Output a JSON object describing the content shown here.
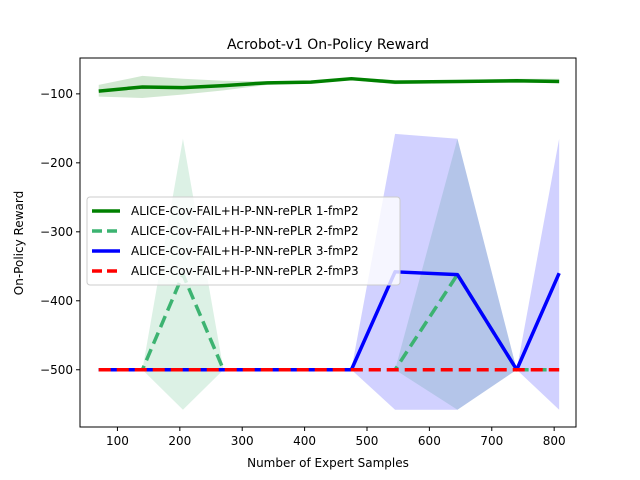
{
  "chart_data": {
    "type": "line",
    "title": "Acrobot-v1 On-Policy Reward",
    "xlabel": "Number of Expert Samples",
    "ylabel": "On-Policy Reward",
    "xlim": [
      40,
      835
    ],
    "ylim": [
      -583,
      -48
    ],
    "xticks": [
      100,
      200,
      300,
      400,
      500,
      600,
      700,
      800
    ],
    "yticks": [
      -100,
      -200,
      -300,
      -400,
      -500
    ],
    "xtick_labels": [
      "100",
      "200",
      "300",
      "400",
      "500",
      "600",
      "700",
      "800"
    ],
    "ytick_labels": [
      "−100",
      "−200",
      "−300",
      "−400",
      "−500"
    ],
    "grid": false,
    "legend_position": "center-left",
    "series": [
      {
        "name": "ALICE-Cov-FAIL+H-P-NN-rePLR 1-fmP2",
        "color": "#008000",
        "dash": "solid",
        "x": [
          70,
          140,
          205,
          270,
          340,
          410,
          475,
          545,
          645,
          740,
          808
        ],
        "y": [
          -96,
          -90,
          -91,
          -88,
          -84,
          -83,
          -78,
          -83,
          -82,
          -81,
          -82
        ],
        "band_upper": [
          -87,
          -74,
          -78,
          -81,
          -82,
          -82,
          -76,
          -80,
          -80,
          -78,
          -78
        ],
        "band_lower": [
          -104,
          -106,
          -101,
          -95,
          -87,
          -85,
          -80,
          -86,
          -84,
          -84,
          -84
        ],
        "band_color": "#008000"
      },
      {
        "name": "ALICE-Cov-FAIL+H-P-NN-rePLR 2-fmP2",
        "color": "#3cb371",
        "dash": "dashed",
        "x": [
          70,
          140,
          205,
          270,
          340,
          410,
          475,
          545,
          645,
          740,
          808
        ],
        "y": [
          -500,
          -500,
          -362,
          -500,
          -500,
          -500,
          -500,
          -500,
          -362,
          -500,
          -500
        ],
        "band_upper": [
          -500,
          -500,
          -165,
          -500,
          -500,
          -500,
          -500,
          -500,
          -165,
          -500,
          -500
        ],
        "band_lower": [
          -500,
          -500,
          -558,
          -500,
          -500,
          -500,
          -500,
          -500,
          -558,
          -500,
          -500
        ],
        "band_color": "#3cb371"
      },
      {
        "name": "ALICE-Cov-FAIL+H-P-NN-rePLR 3-fmP2",
        "color": "#0000ff",
        "dash": "solid",
        "x": [
          70,
          140,
          205,
          270,
          340,
          410,
          475,
          545,
          645,
          740,
          808
        ],
        "y": [
          -500,
          -500,
          -500,
          -500,
          -500,
          -500,
          -500,
          -358,
          -362,
          -500,
          -360
        ],
        "band_upper": [
          -500,
          -500,
          -500,
          -500,
          -500,
          -500,
          -500,
          -158,
          -165,
          -500,
          -165
        ],
        "band_lower": [
          -500,
          -500,
          -500,
          -500,
          -500,
          -500,
          -500,
          -558,
          -558,
          -500,
          -558
        ],
        "band_color": "#0000ff"
      },
      {
        "name": "ALICE-Cov-FAIL+H-P-NN-rePLR 2-fmP3",
        "color": "#ff0000",
        "dash": "dashed",
        "x": [
          70,
          140,
          205,
          270,
          340,
          410,
          475,
          545,
          645,
          740,
          808
        ],
        "y": [
          -500,
          -500,
          -500,
          -500,
          -500,
          -500,
          -500,
          -500,
          -500,
          -500,
          -500
        ]
      }
    ]
  }
}
